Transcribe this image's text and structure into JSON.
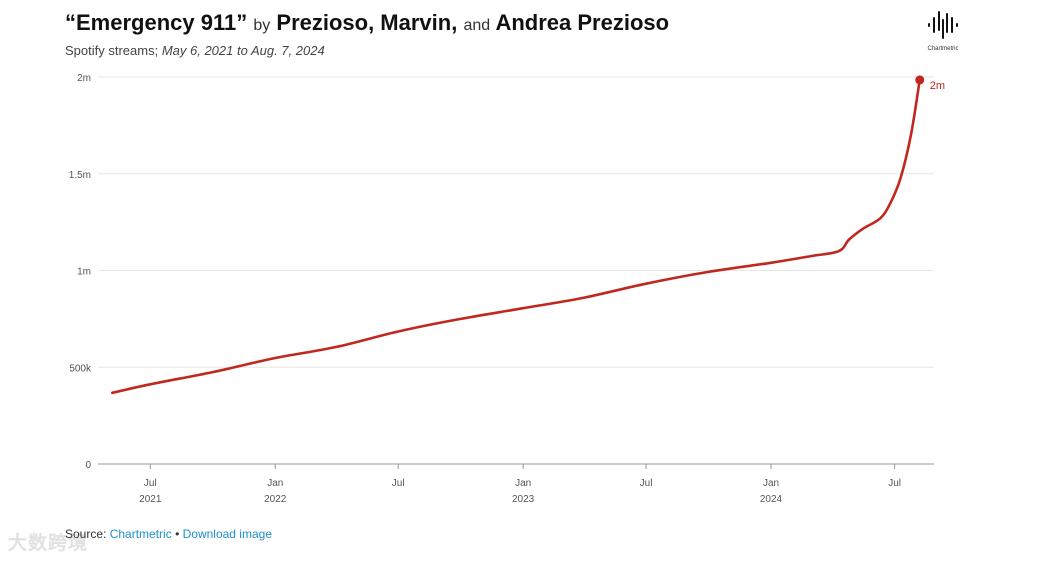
{
  "header": {
    "title_song": "“Emergency 911”",
    "title_by": "by",
    "title_artist1": "Prezioso, Marvin,",
    "title_and": "and",
    "title_artist2": "Andrea Prezioso",
    "subtitle_prefix": "Spotify streams;",
    "subtitle_range": "May 6, 2021 to Aug. 7, 2024",
    "logo_text": "Chartmetric"
  },
  "footer": {
    "source_label": "Source:",
    "source_link": "Chartmetric",
    "separator": "•",
    "download_link": "Download image"
  },
  "watermark": "大数跨境",
  "colors": {
    "line": "#c0281f",
    "grid": "#e6e6e6",
    "axis": "#999999",
    "link": "#1f8fc9"
  },
  "chart_data": {
    "type": "line",
    "title": "“Emergency 911” by Prezioso, Marvin, and Andrea Prezioso",
    "subtitle": "Spotify streams; May 6, 2021 to Aug. 7, 2024",
    "xlabel": "",
    "ylabel": "",
    "ylim": [
      0,
      2000000
    ],
    "xlim": [
      "2021-04-15",
      "2024-08-28"
    ],
    "grid": true,
    "y_ticks": [
      {
        "value": 0,
        "label": "0"
      },
      {
        "value": 500000,
        "label": "500k"
      },
      {
        "value": 1000000,
        "label": "1m"
      },
      {
        "value": 1500000,
        "label": "1.5m"
      },
      {
        "value": 2000000,
        "label": "2m"
      }
    ],
    "x_ticks": [
      {
        "date": "2021-07-01",
        "label": "Jul",
        "year": "2021"
      },
      {
        "date": "2022-01-01",
        "label": "Jan",
        "year": "2022"
      },
      {
        "date": "2022-07-01",
        "label": "Jul",
        "year": ""
      },
      {
        "date": "2023-01-01",
        "label": "Jan",
        "year": "2023"
      },
      {
        "date": "2023-07-01",
        "label": "Jul",
        "year": ""
      },
      {
        "date": "2024-01-01",
        "label": "Jan",
        "year": "2024"
      },
      {
        "date": "2024-07-01",
        "label": "Jul",
        "year": ""
      }
    ],
    "series": [
      {
        "name": "Spotify streams",
        "points": [
          {
            "date": "2021-05-06",
            "value": 368000
          },
          {
            "date": "2021-07-01",
            "value": 412000
          },
          {
            "date": "2021-10-01",
            "value": 475000
          },
          {
            "date": "2022-01-01",
            "value": 548000
          },
          {
            "date": "2022-04-01",
            "value": 605000
          },
          {
            "date": "2022-07-01",
            "value": 685000
          },
          {
            "date": "2022-10-01",
            "value": 750000
          },
          {
            "date": "2023-01-01",
            "value": 805000
          },
          {
            "date": "2023-04-01",
            "value": 860000
          },
          {
            "date": "2023-07-01",
            "value": 932000
          },
          {
            "date": "2023-10-01",
            "value": 993000
          },
          {
            "date": "2024-01-01",
            "value": 1040000
          },
          {
            "date": "2024-03-01",
            "value": 1075000
          },
          {
            "date": "2024-04-10",
            "value": 1100000
          },
          {
            "date": "2024-04-25",
            "value": 1160000
          },
          {
            "date": "2024-05-15",
            "value": 1215000
          },
          {
            "date": "2024-06-10",
            "value": 1270000
          },
          {
            "date": "2024-06-25",
            "value": 1350000
          },
          {
            "date": "2024-07-10",
            "value": 1480000
          },
          {
            "date": "2024-07-25",
            "value": 1700000
          },
          {
            "date": "2024-08-07",
            "value": 1985000
          }
        ],
        "end_label": "2m"
      }
    ]
  }
}
